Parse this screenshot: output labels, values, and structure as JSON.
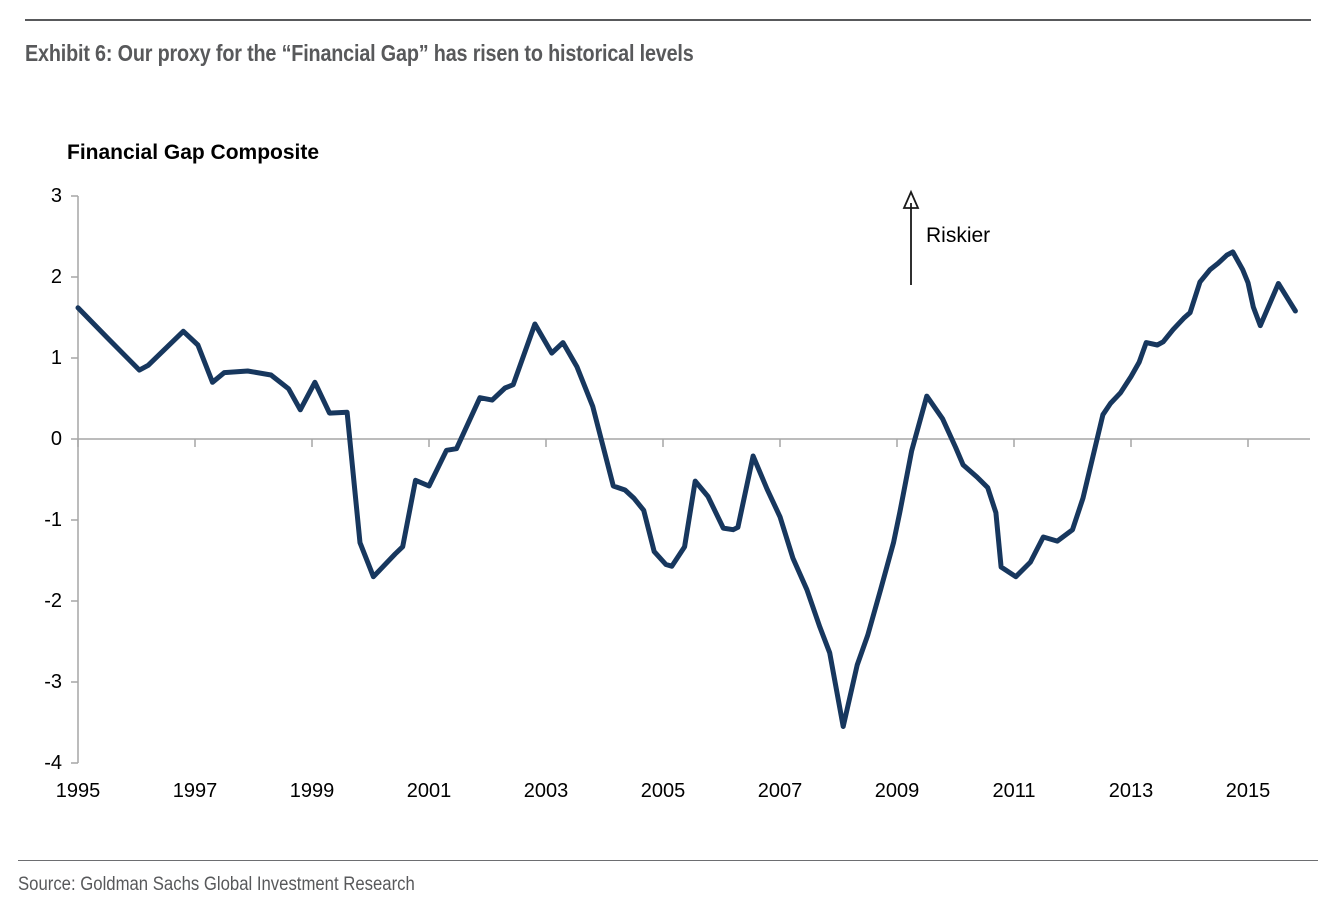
{
  "header": {
    "exhibit_title": "Exhibit 6: Our proxy for the “Financial Gap” has risen to historical levels"
  },
  "chart_data": {
    "type": "line",
    "title": "Financial Gap Composite",
    "xlabel": "",
    "ylabel": "",
    "xlim": [
      1995,
      2016.1
    ],
    "ylim": [
      -4,
      3
    ],
    "grid": "zero-baseline-only",
    "legend_position": "none",
    "x_tick_labels": [
      "1995",
      "1997",
      "1999",
      "2001",
      "2003",
      "2005",
      "2007",
      "2009",
      "2011",
      "2013",
      "2015"
    ],
    "x_tick_years": [
      1995,
      1997,
      1999,
      2001,
      2003,
      2005,
      2007,
      2009,
      2011,
      2013,
      2015
    ],
    "y_tick_labels": [
      "3",
      "2",
      "1",
      "0",
      "-1",
      "-2",
      "-3",
      "-4"
    ],
    "y_tick_values": [
      3,
      2,
      1,
      0,
      -1,
      -2,
      -3,
      -4
    ],
    "axis_color": "#A6A6A6",
    "annotation": {
      "label": "Riskier",
      "arrow_direction": "up",
      "arrow_color": "#1A1A1A"
    },
    "series": [
      {
        "name": "Financial Gap Composite",
        "color": "#17375E",
        "points": [
          [
            1995.0,
            1.62
          ],
          [
            1995.5,
            1.25
          ],
          [
            1996.05,
            0.85
          ],
          [
            1996.2,
            0.91
          ],
          [
            1996.8,
            1.33
          ],
          [
            1997.05,
            1.16
          ],
          [
            1997.3,
            0.7
          ],
          [
            1997.5,
            0.82
          ],
          [
            1997.9,
            0.84
          ],
          [
            1998.3,
            0.79
          ],
          [
            1998.6,
            0.62
          ],
          [
            1998.8,
            0.36
          ],
          [
            1999.05,
            0.7
          ],
          [
            1999.3,
            0.32
          ],
          [
            1999.6,
            0.33
          ],
          [
            1999.82,
            -1.28
          ],
          [
            2000.05,
            -1.7
          ],
          [
            2000.42,
            -1.42
          ],
          [
            2000.55,
            -1.33
          ],
          [
            2000.77,
            -0.51
          ],
          [
            2001.0,
            -0.58
          ],
          [
            2001.3,
            -0.14
          ],
          [
            2001.47,
            -0.12
          ],
          [
            2001.87,
            0.51
          ],
          [
            2002.08,
            0.48
          ],
          [
            2002.3,
            0.63
          ],
          [
            2002.44,
            0.67
          ],
          [
            2002.81,
            1.42
          ],
          [
            2003.1,
            1.06
          ],
          [
            2003.29,
            1.19
          ],
          [
            2003.53,
            0.89
          ],
          [
            2003.8,
            0.4
          ],
          [
            2004.15,
            -0.58
          ],
          [
            2004.35,
            -0.63
          ],
          [
            2004.5,
            -0.73
          ],
          [
            2004.67,
            -0.88
          ],
          [
            2004.85,
            -1.39
          ],
          [
            2005.05,
            -1.55
          ],
          [
            2005.15,
            -1.57
          ],
          [
            2005.37,
            -1.33
          ],
          [
            2005.55,
            -0.52
          ],
          [
            2005.77,
            -0.71
          ],
          [
            2006.03,
            -1.1
          ],
          [
            2006.2,
            -1.12
          ],
          [
            2006.28,
            -1.09
          ],
          [
            2006.54,
            -0.21
          ],
          [
            2006.78,
            -0.62
          ],
          [
            2007.0,
            -0.96
          ],
          [
            2007.22,
            -1.47
          ],
          [
            2007.46,
            -1.86
          ],
          [
            2007.68,
            -2.32
          ],
          [
            2007.85,
            -2.64
          ],
          [
            2008.08,
            -3.55
          ],
          [
            2008.32,
            -2.79
          ],
          [
            2008.5,
            -2.42
          ],
          [
            2008.72,
            -1.86
          ],
          [
            2008.94,
            -1.28
          ],
          [
            2009.05,
            -0.9
          ],
          [
            2009.25,
            -0.15
          ],
          [
            2009.51,
            0.53
          ],
          [
            2009.78,
            0.25
          ],
          [
            2010.0,
            -0.1
          ],
          [
            2010.13,
            -0.32
          ],
          [
            2010.37,
            -0.47
          ],
          [
            2010.55,
            -0.6
          ],
          [
            2010.69,
            -0.91
          ],
          [
            2010.78,
            -1.58
          ],
          [
            2011.03,
            -1.7
          ],
          [
            2011.28,
            -1.52
          ],
          [
            2011.5,
            -1.21
          ],
          [
            2011.74,
            -1.26
          ],
          [
            2012.0,
            -1.12
          ],
          [
            2012.18,
            -0.73
          ],
          [
            2012.52,
            0.3
          ],
          [
            2012.65,
            0.44
          ],
          [
            2012.82,
            0.57
          ],
          [
            2013.0,
            0.77
          ],
          [
            2013.14,
            0.95
          ],
          [
            2013.26,
            1.19
          ],
          [
            2013.45,
            1.16
          ],
          [
            2013.55,
            1.2
          ],
          [
            2013.72,
            1.35
          ],
          [
            2013.9,
            1.49
          ],
          [
            2014.01,
            1.56
          ],
          [
            2014.18,
            1.94
          ],
          [
            2014.35,
            2.09
          ],
          [
            2014.49,
            2.17
          ],
          [
            2014.64,
            2.27
          ],
          [
            2014.74,
            2.31
          ],
          [
            2014.91,
            2.09
          ],
          [
            2015.0,
            1.93
          ],
          [
            2015.09,
            1.63
          ],
          [
            2015.21,
            1.4
          ],
          [
            2015.52,
            1.92
          ],
          [
            2015.69,
            1.72
          ],
          [
            2015.81,
            1.58
          ]
        ]
      }
    ]
  },
  "footer": {
    "source": "Source: Goldman Sachs Global Investment Research"
  }
}
